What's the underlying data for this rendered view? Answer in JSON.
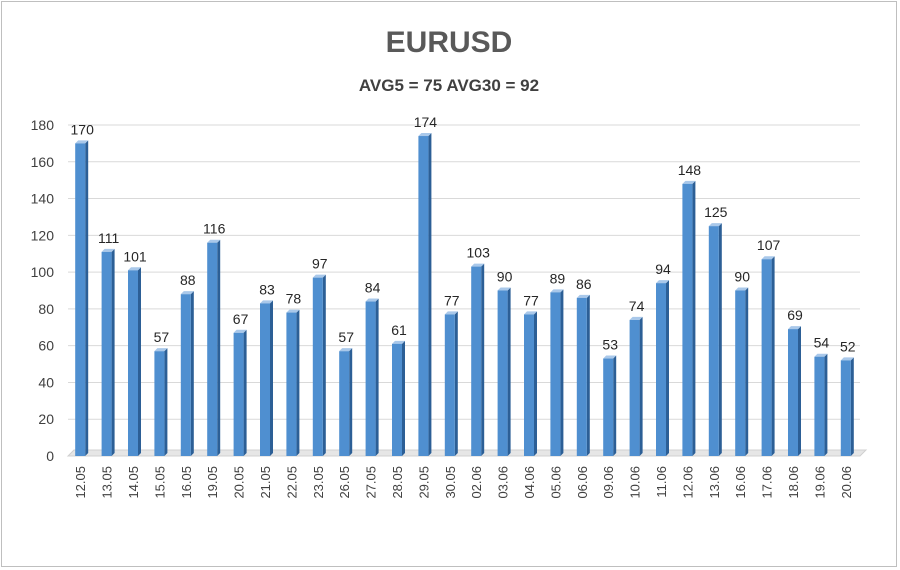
{
  "chart_data": {
    "type": "bar",
    "title": "EURUSD",
    "subtitle": "AVG5 = 75 AVG30 = 92",
    "categories": [
      "12.05",
      "13.05",
      "14.05",
      "15.05",
      "16.05",
      "19.05",
      "20.05",
      "21.05",
      "22.05",
      "23.05",
      "26.05",
      "27.05",
      "28.05",
      "29.05",
      "30.05",
      "02.06",
      "03.06",
      "04.06",
      "05.06",
      "06.06",
      "09.06",
      "10.06",
      "11.06",
      "12.06",
      "13.06",
      "16.06",
      "17.06",
      "18.06",
      "19.06",
      "20.06"
    ],
    "values": [
      170,
      111,
      101,
      57,
      88,
      116,
      67,
      83,
      78,
      97,
      57,
      84,
      61,
      174,
      77,
      103,
      90,
      77,
      89,
      86,
      53,
      74,
      94,
      148,
      125,
      90,
      107,
      69,
      54,
      52
    ],
    "ylim": [
      0,
      180
    ],
    "yticks": [
      0,
      20,
      40,
      60,
      80,
      100,
      120,
      140,
      160,
      180
    ],
    "grid": true,
    "xlabel": "",
    "ylabel": "",
    "colors": {
      "bar_front": "#4f8fd0",
      "bar_side": "#2c5f96",
      "bar_top": "#a9c8ea",
      "grid": "#d9d9d9"
    }
  }
}
